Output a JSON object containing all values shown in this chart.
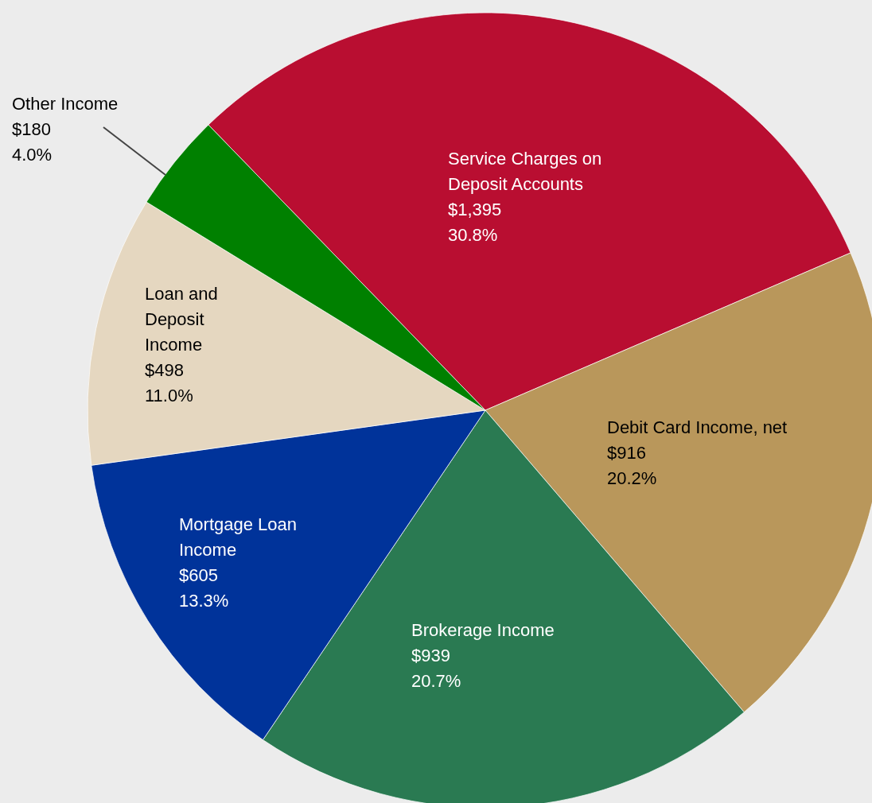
{
  "chart_data": {
    "type": "pie",
    "categories": [
      "Service Charges on Deposit Accounts",
      "Debit Card Income, net",
      "Brokerage Income",
      "Mortgage Loan Income",
      "Loan and Deposit Income",
      "Other Income"
    ],
    "values": [
      1395,
      916,
      939,
      605,
      498,
      180
    ],
    "colors": [
      "#b90e31",
      "#b9975b",
      "#2a7a52",
      "#00339a",
      "#e5d7c0",
      "#008000"
    ],
    "value_labels": [
      "$1,395\n30.8%",
      "$916\n20.2%",
      "$939\n20.7%",
      "$605\n13.3%",
      "$498\n11.0%",
      "$180\n4.0%"
    ]
  }
}
